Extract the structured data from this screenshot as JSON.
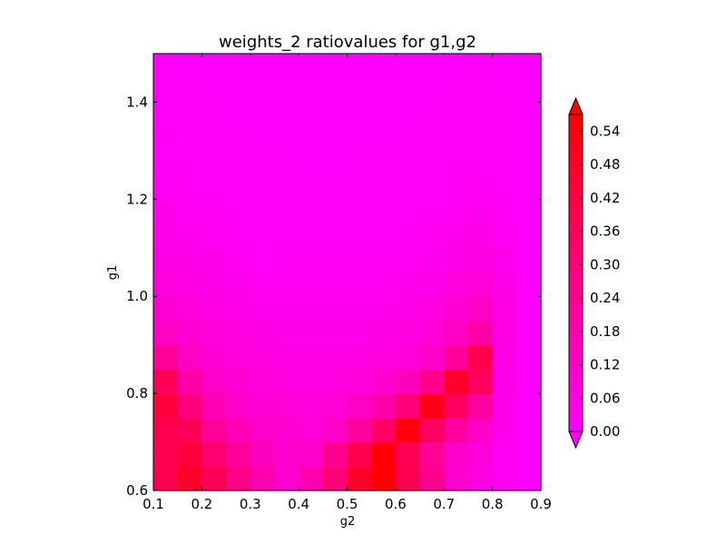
{
  "chart_data": {
    "type": "heatmap",
    "title": "weights_2 ratiovalues for g1,g2",
    "xlabel": "g2",
    "ylabel": "g1",
    "xlim": [
      0.1,
      0.9
    ],
    "ylim": [
      0.6,
      1.5
    ],
    "x_ticks": [
      "0.1",
      "0.2",
      "0.3",
      "0.4",
      "0.5",
      "0.6",
      "0.7",
      "0.8",
      "0.9"
    ],
    "y_ticks": [
      "0.6",
      "0.8",
      "1.0",
      "1.2",
      "1.4"
    ],
    "colorbar": {
      "colormap": "gist_rainbow (reversed: magenta at 0, red at max)",
      "range": [
        0.0,
        0.57
      ],
      "ticks": [
        "0.00",
        "0.06",
        "0.12",
        "0.18",
        "0.24",
        "0.30",
        "0.36",
        "0.42",
        "0.48",
        "0.54"
      ],
      "extend": "both"
    },
    "grid": {
      "x_centers": [
        0.1,
        0.15,
        0.2,
        0.25,
        0.3,
        0.35,
        0.4,
        0.45,
        0.5,
        0.55,
        0.6,
        0.65,
        0.7,
        0.75,
        0.8,
        0.85,
        0.9
      ],
      "y_centers": [
        0.6,
        0.65,
        0.7,
        0.75,
        0.8,
        0.85,
        0.9,
        0.95,
        1.0,
        1.05,
        1.1,
        1.15,
        1.2,
        1.25,
        1.3,
        1.35,
        1.4,
        1.45,
        1.5
      ],
      "note": "values listed from bottom row (g1=0.6) to top row (g1=1.5); each row left (g2=0.1) to right (g2=0.9)",
      "values": [
        [
          0.4,
          0.48,
          0.38,
          0.27,
          0.18,
          0.11,
          0.18,
          0.3,
          0.48,
          0.56,
          0.39,
          0.25,
          0.11,
          0.07,
          0.03,
          0.0
        ],
        [
          0.39,
          0.44,
          0.32,
          0.23,
          0.15,
          0.11,
          0.12,
          0.25,
          0.4,
          0.56,
          0.38,
          0.23,
          0.12,
          0.08,
          0.03,
          0.0
        ],
        [
          0.4,
          0.37,
          0.23,
          0.16,
          0.12,
          0.1,
          0.09,
          0.13,
          0.22,
          0.34,
          0.54,
          0.35,
          0.21,
          0.12,
          0.04,
          0.0
        ],
        [
          0.44,
          0.29,
          0.16,
          0.12,
          0.1,
          0.09,
          0.08,
          0.09,
          0.13,
          0.19,
          0.3,
          0.52,
          0.36,
          0.21,
          0.04,
          0.0
        ],
        [
          0.37,
          0.2,
          0.12,
          0.1,
          0.08,
          0.07,
          0.07,
          0.07,
          0.08,
          0.11,
          0.15,
          0.26,
          0.47,
          0.36,
          0.05,
          0.0
        ],
        [
          0.23,
          0.13,
          0.1,
          0.08,
          0.07,
          0.06,
          0.06,
          0.06,
          0.06,
          0.07,
          0.09,
          0.12,
          0.22,
          0.4,
          0.05,
          0.0
        ],
        [
          0.13,
          0.1,
          0.08,
          0.07,
          0.06,
          0.05,
          0.05,
          0.05,
          0.05,
          0.06,
          0.07,
          0.09,
          0.13,
          0.2,
          0.06,
          0.0
        ],
        [
          0.1,
          0.08,
          0.06,
          0.05,
          0.04,
          0.04,
          0.04,
          0.04,
          0.04,
          0.04,
          0.05,
          0.07,
          0.1,
          0.13,
          0.06,
          0.0
        ],
        [
          0.08,
          0.06,
          0.05,
          0.04,
          0.03,
          0.03,
          0.03,
          0.03,
          0.03,
          0.03,
          0.04,
          0.05,
          0.07,
          0.09,
          0.05,
          0.0
        ],
        [
          0.06,
          0.05,
          0.04,
          0.03,
          0.02,
          0.02,
          0.02,
          0.02,
          0.02,
          0.02,
          0.03,
          0.04,
          0.05,
          0.07,
          0.04,
          0.0
        ],
        [
          0.05,
          0.04,
          0.03,
          0.02,
          0.02,
          0.02,
          0.02,
          0.02,
          0.02,
          0.02,
          0.02,
          0.03,
          0.04,
          0.05,
          0.03,
          0.0
        ],
        [
          0.04,
          0.03,
          0.02,
          0.02,
          0.01,
          0.01,
          0.01,
          0.01,
          0.01,
          0.01,
          0.02,
          0.02,
          0.03,
          0.04,
          0.02,
          0.0
        ],
        [
          0.03,
          0.02,
          0.02,
          0.01,
          0.01,
          0.01,
          0.01,
          0.01,
          0.01,
          0.01,
          0.01,
          0.02,
          0.02,
          0.03,
          0.02,
          0.0
        ],
        [
          0.02,
          0.02,
          0.01,
          0.01,
          0.01,
          0.01,
          0.0,
          0.0,
          0.01,
          0.01,
          0.01,
          0.01,
          0.02,
          0.02,
          0.01,
          0.0
        ],
        [
          0.02,
          0.01,
          0.01,
          0.01,
          0.0,
          0.0,
          0.0,
          0.0,
          0.0,
          0.0,
          0.01,
          0.01,
          0.01,
          0.02,
          0.01,
          0.0
        ],
        [
          0.01,
          0.01,
          0.01,
          0.0,
          0.0,
          0.0,
          0.0,
          0.0,
          0.0,
          0.0,
          0.0,
          0.01,
          0.01,
          0.01,
          0.01,
          0.0
        ],
        [
          0.01,
          0.01,
          0.0,
          0.0,
          0.0,
          0.0,
          0.0,
          0.0,
          0.0,
          0.0,
          0.0,
          0.0,
          0.01,
          0.01,
          0.0,
          0.0
        ],
        [
          0.01,
          0.0,
          0.0,
          0.0,
          0.0,
          0.0,
          0.0,
          0.0,
          0.0,
          0.0,
          0.0,
          0.0,
          0.0,
          0.01,
          0.0,
          0.0
        ]
      ]
    }
  }
}
